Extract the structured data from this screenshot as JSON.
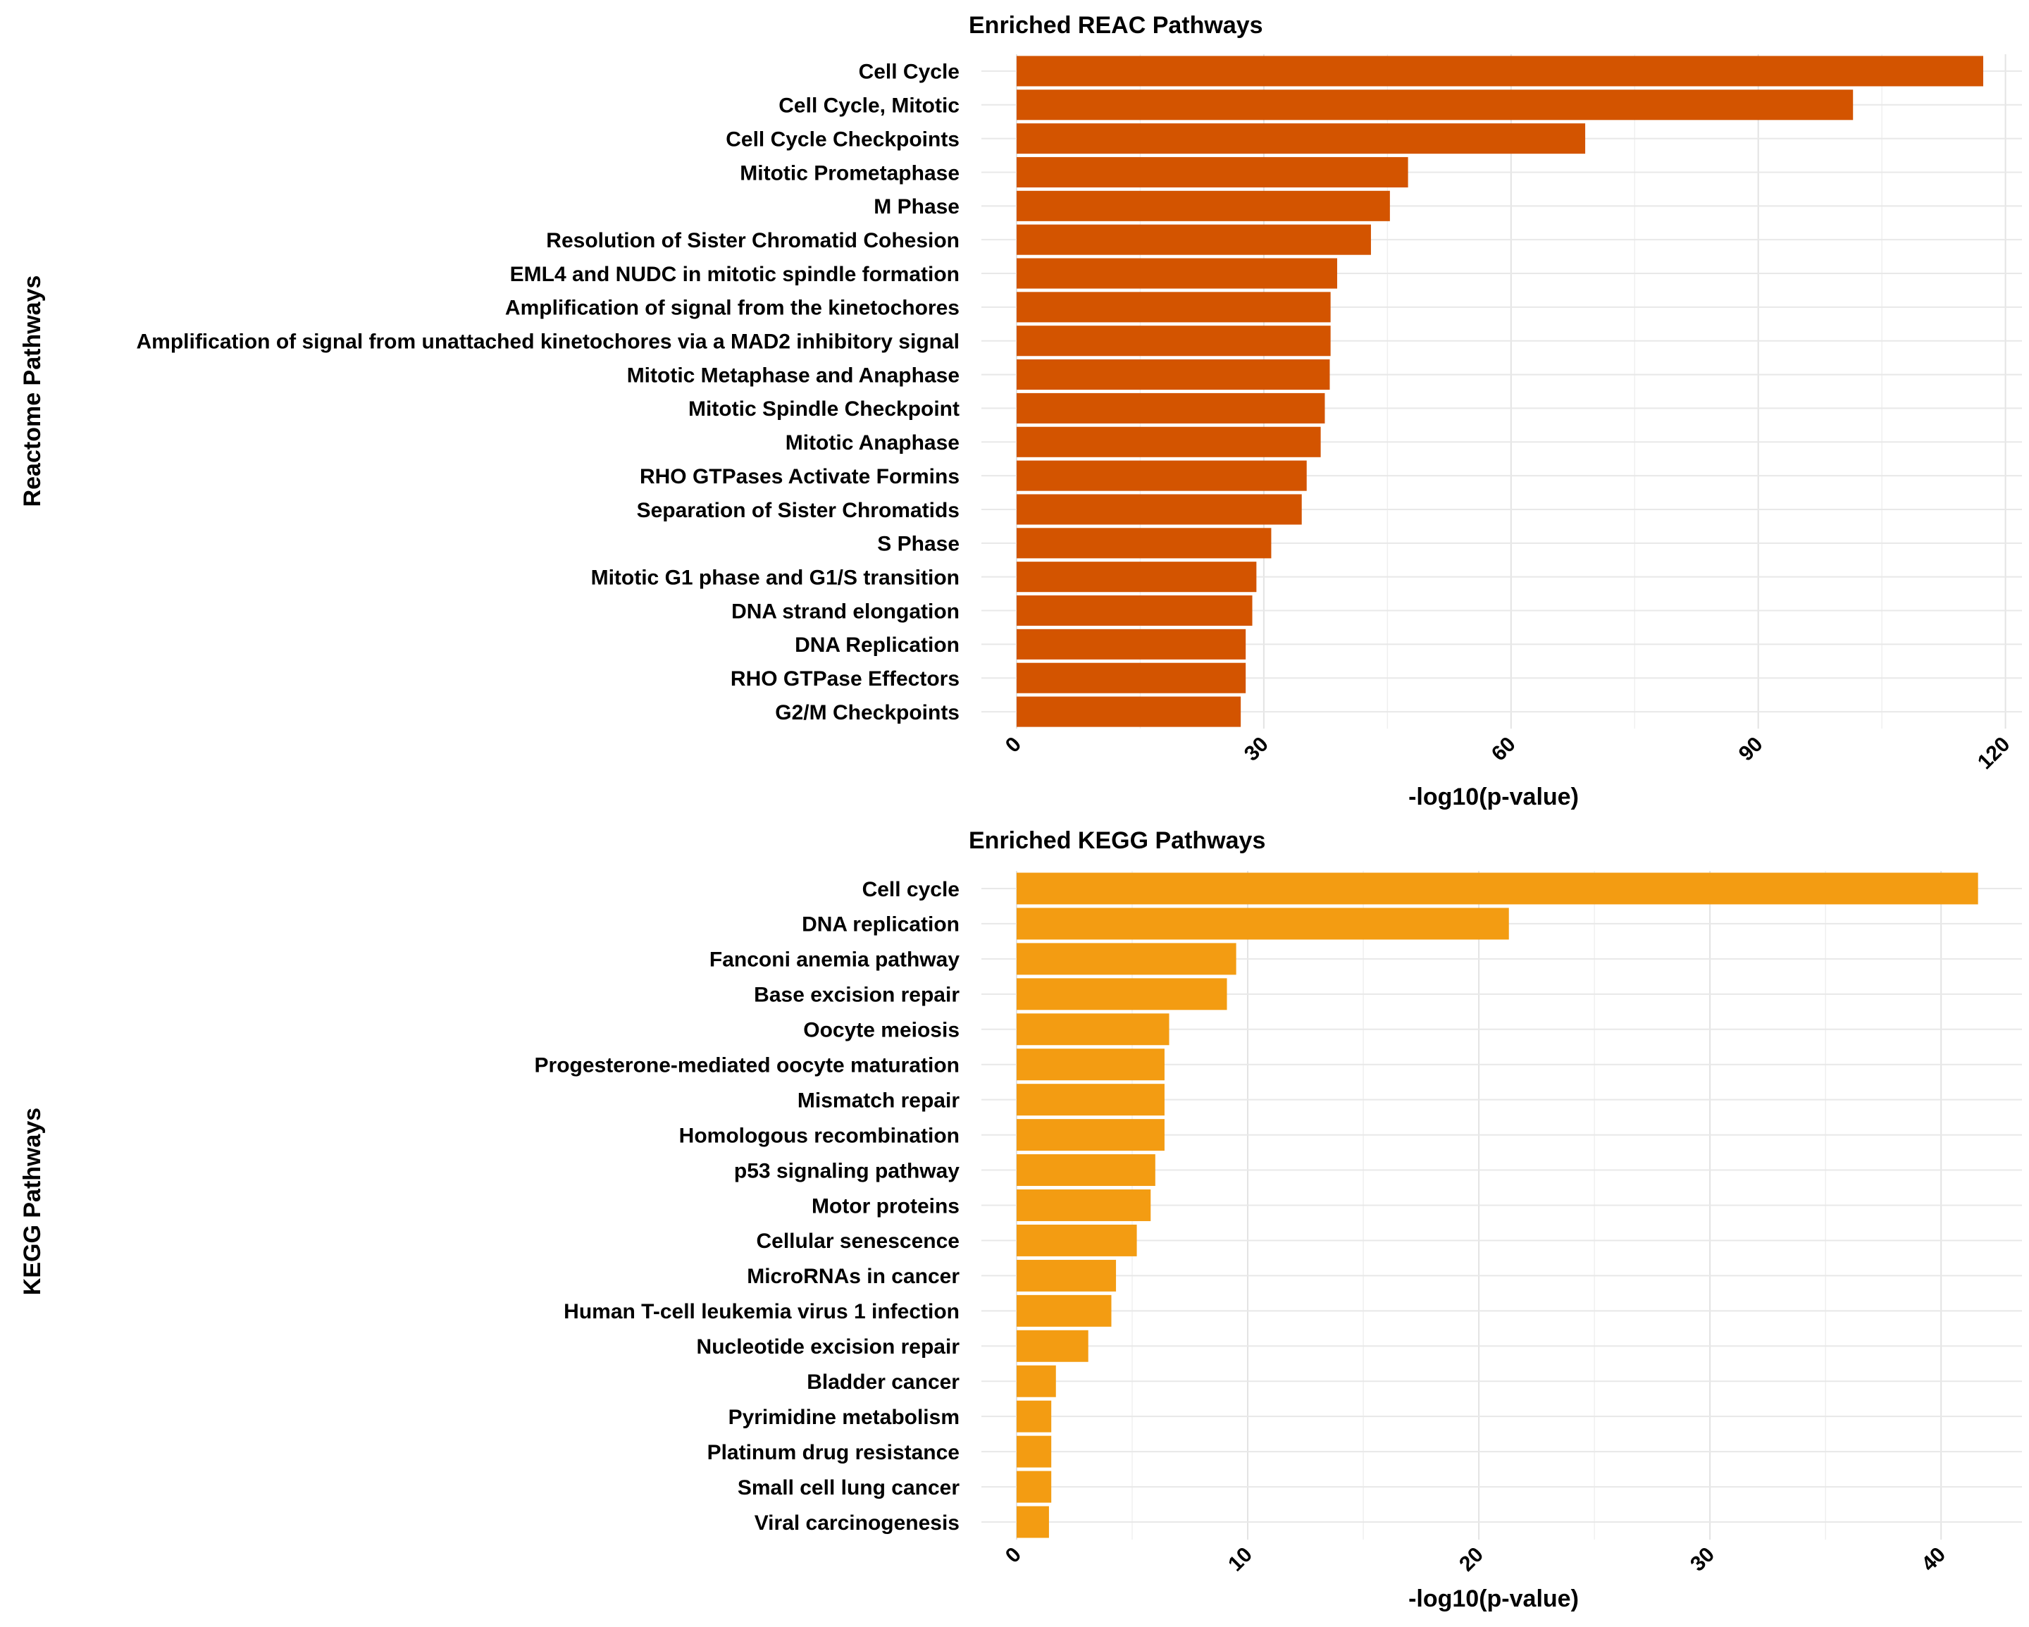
{
  "chart_data": [
    {
      "type": "bar",
      "orientation": "horizontal",
      "title": "Enriched REAC Pathways",
      "xlabel": "-log10(p-value)",
      "ylabel": "Reactome Pathways",
      "xlim": [
        0,
        122
      ],
      "xticks": [
        "0",
        "30",
        "60",
        "90",
        "120"
      ],
      "tick_values": [
        0,
        30,
        60,
        90,
        120
      ],
      "grid": true,
      "bar_color": "#D35400",
      "categories": [
        "Cell Cycle",
        "Cell Cycle, Mitotic",
        "Cell Cycle Checkpoints",
        "Mitotic Prometaphase",
        "M Phase",
        "Resolution of Sister Chromatid Cohesion",
        "EML4 and NUDC in mitotic spindle formation",
        "Amplification of signal from the kinetochores",
        "Amplification  of signal from unattached  kinetochores via a MAD2  inhibitory signal",
        "Mitotic Metaphase and Anaphase",
        "Mitotic Spindle Checkpoint",
        "Mitotic Anaphase",
        "RHO GTPases Activate Formins",
        "Separation of Sister Chromatids",
        "S Phase",
        "Mitotic G1 phase and G1/S transition",
        "DNA strand elongation",
        "DNA Replication",
        "RHO GTPase Effectors",
        "G2/M Checkpoints"
      ],
      "values": [
        117.3,
        101.5,
        69.0,
        47.5,
        45.3,
        43.0,
        38.9,
        38.1,
        38.1,
        38.0,
        37.4,
        36.9,
        35.2,
        34.6,
        30.9,
        29.1,
        28.6,
        27.8,
        27.8,
        27.2
      ]
    },
    {
      "type": "bar",
      "orientation": "horizontal",
      "title": "Enriched KEGG Pathways",
      "xlabel": "-log10(p-value)",
      "ylabel": "KEGG Pathways",
      "xlim": [
        0,
        43.5
      ],
      "xticks": [
        "0",
        "10",
        "20",
        "30",
        "40"
      ],
      "tick_values": [
        0,
        10,
        20,
        30,
        40
      ],
      "grid": true,
      "bar_color": "#F39C12",
      "categories": [
        "Cell cycle",
        "DNA replication",
        "Fanconi anemia pathway",
        "Base excision repair",
        "Oocyte meiosis",
        "Progesterone-mediated oocyte maturation",
        "Mismatch repair",
        "Homologous recombination",
        "p53 signaling pathway",
        "Motor proteins",
        "Cellular senescence",
        "MicroRNAs in cancer",
        "Human T-cell leukemia virus 1 infection",
        "Nucleotide excision repair",
        "Bladder cancer",
        "Pyrimidine metabolism",
        "Platinum drug resistance",
        "Small cell lung cancer",
        "Viral carcinogenesis"
      ],
      "values": [
        41.6,
        21.3,
        9.5,
        9.1,
        6.6,
        6.4,
        6.4,
        6.4,
        6.0,
        5.8,
        5.2,
        4.3,
        4.1,
        3.1,
        1.7,
        1.5,
        1.5,
        1.5,
        1.4
      ]
    }
  ]
}
